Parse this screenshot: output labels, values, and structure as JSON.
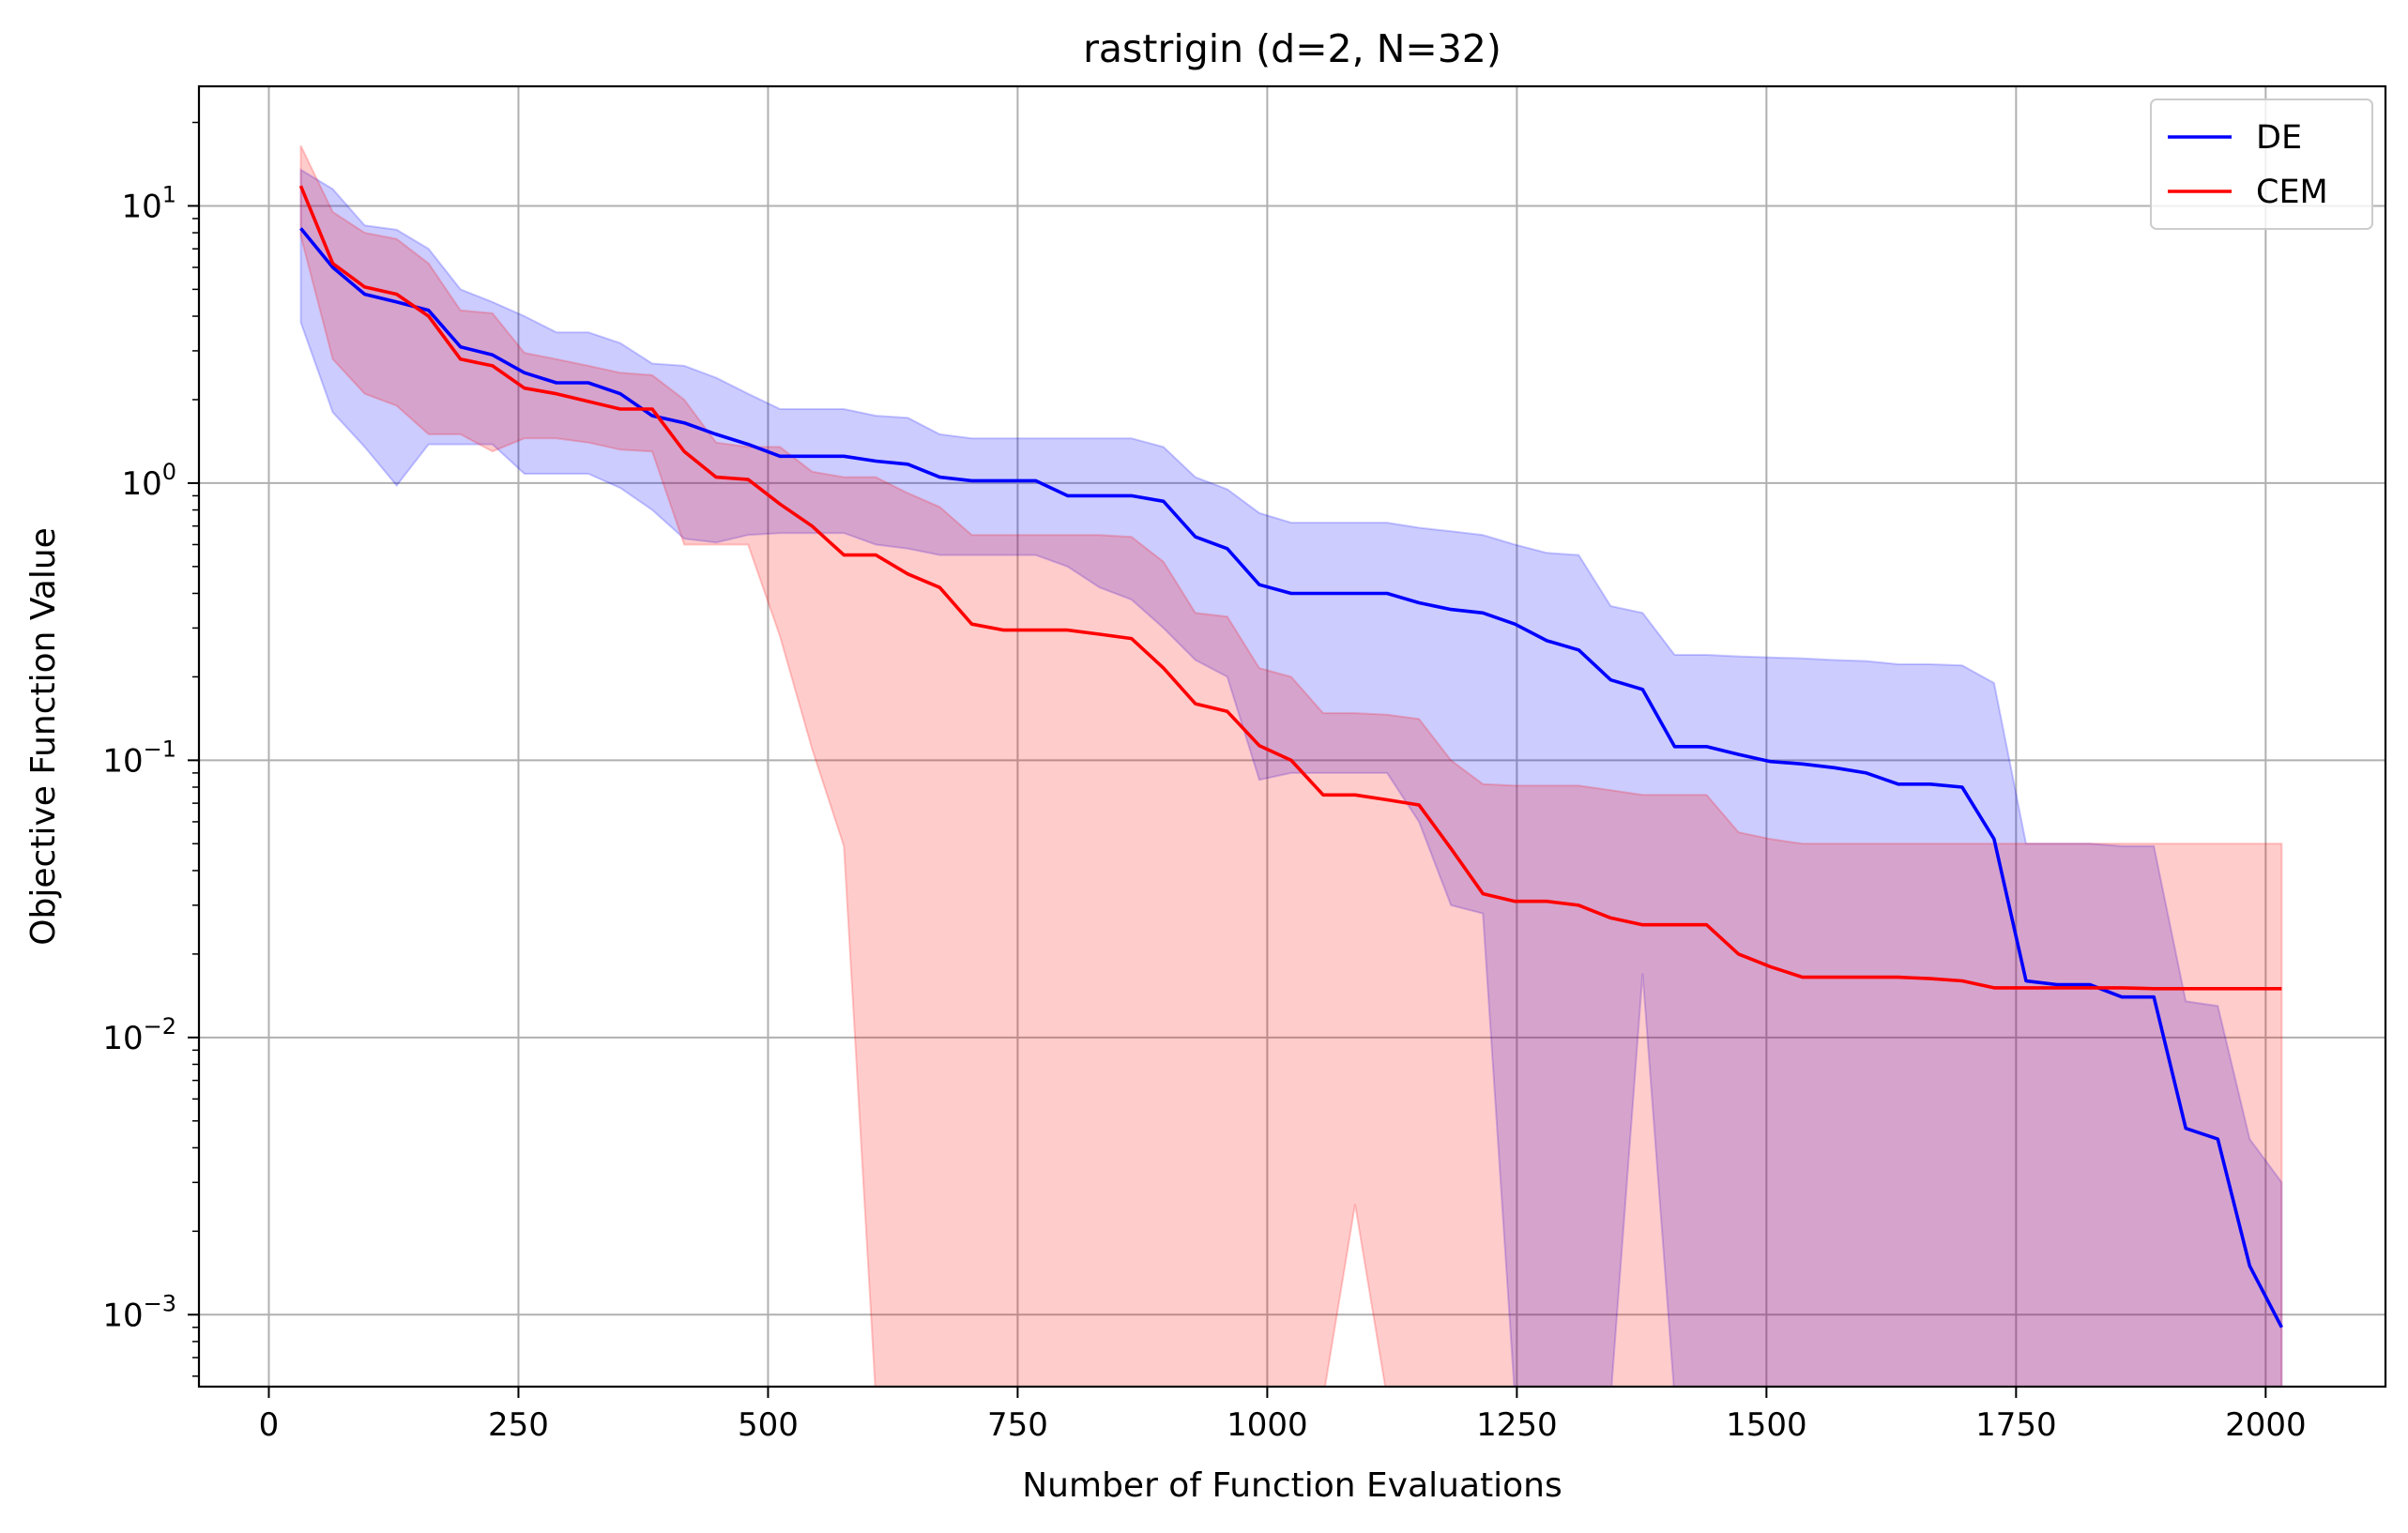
{
  "chart_data": {
    "type": "line",
    "title": "rastrigin (d=2, N=32)",
    "xlabel": "Number of Function Evaluations",
    "ylabel": "Objective Function Value",
    "xlim": [
      -70,
      2120
    ],
    "ylim": [
      0.00055,
      27
    ],
    "yscale": "log",
    "grid": true,
    "legend_position": "top-right",
    "x_ticks": [
      {
        "value": 0,
        "label": "0"
      },
      {
        "value": 250,
        "label": "250"
      },
      {
        "value": 500,
        "label": "500"
      },
      {
        "value": 750,
        "label": "750"
      },
      {
        "value": 1000,
        "label": "1000"
      },
      {
        "value": 1250,
        "label": "1250"
      },
      {
        "value": 1500,
        "label": "1500"
      },
      {
        "value": 1750,
        "label": "1750"
      },
      {
        "value": 2000,
        "label": "2000"
      }
    ],
    "y_ticks": [
      {
        "value": 0.001,
        "base": "10",
        "exp": "−3"
      },
      {
        "value": 0.01,
        "base": "10",
        "exp": "−2"
      },
      {
        "value": 0.1,
        "base": "10",
        "exp": "−1"
      },
      {
        "value": 1,
        "base": "10",
        "exp": "0"
      },
      {
        "value": 10,
        "base": "10",
        "exp": "1"
      }
    ],
    "series": [
      {
        "name": "DE",
        "color": "#0000ff",
        "x": [
          32,
          64,
          96,
          128,
          160,
          192,
          224,
          256,
          288,
          320,
          352,
          384,
          416,
          448,
          480,
          512,
          544,
          576,
          608,
          640,
          672,
          704,
          736,
          768,
          800,
          832,
          864,
          896,
          928,
          960,
          992,
          1024,
          1056,
          1088,
          1120,
          1152,
          1184,
          1216,
          1248,
          1280,
          1312,
          1344,
          1376,
          1408,
          1440,
          1472,
          1504,
          1536,
          1568,
          1600,
          1632,
          1664,
          1696,
          1728,
          1760,
          1792,
          1824,
          1856,
          1888,
          1920,
          1952,
          1984,
          2016
        ],
        "y": [
          8.3,
          6.0,
          4.8,
          4.5,
          4.2,
          3.1,
          2.9,
          2.5,
          2.3,
          2.3,
          2.1,
          1.75,
          1.65,
          1.5,
          1.38,
          1.25,
          1.25,
          1.25,
          1.2,
          1.17,
          1.05,
          1.02,
          1.02,
          1.02,
          0.9,
          0.9,
          0.9,
          0.86,
          0.64,
          0.58,
          0.43,
          0.4,
          0.4,
          0.4,
          0.4,
          0.37,
          0.35,
          0.34,
          0.31,
          0.27,
          0.25,
          0.195,
          0.18,
          0.112,
          0.112,
          0.105,
          0.099,
          0.097,
          0.094,
          0.09,
          0.082,
          0.082,
          0.08,
          0.052,
          0.016,
          0.0155,
          0.0155,
          0.014,
          0.014,
          0.0047,
          0.0043,
          0.0015,
          0.0009
        ],
        "band_upper": [
          13.5,
          11.5,
          8.5,
          8.2,
          7.0,
          5.0,
          4.5,
          4.0,
          3.5,
          3.5,
          3.2,
          2.7,
          2.65,
          2.4,
          2.1,
          1.85,
          1.85,
          1.85,
          1.75,
          1.72,
          1.5,
          1.45,
          1.45,
          1.45,
          1.45,
          1.45,
          1.45,
          1.35,
          1.05,
          0.95,
          0.78,
          0.72,
          0.72,
          0.72,
          0.72,
          0.69,
          0.67,
          0.65,
          0.6,
          0.56,
          0.55,
          0.36,
          0.34,
          0.24,
          0.24,
          0.237,
          0.235,
          0.233,
          0.23,
          0.228,
          0.222,
          0.222,
          0.22,
          0.19,
          0.05,
          0.05,
          0.05,
          0.049,
          0.049,
          0.0135,
          0.013,
          0.0043,
          0.003
        ],
        "band_lower": [
          3.8,
          1.8,
          1.35,
          0.98,
          1.38,
          1.38,
          1.38,
          1.08,
          1.08,
          1.08,
          0.96,
          0.8,
          0.63,
          0.61,
          0.65,
          0.66,
          0.66,
          0.66,
          0.6,
          0.58,
          0.55,
          0.55,
          0.55,
          0.55,
          0.5,
          0.42,
          0.38,
          0.3,
          0.23,
          0.2,
          0.085,
          0.09,
          0.09,
          0.09,
          0.09,
          0.06,
          0.03,
          0.028,
          0.0005,
          0.0005,
          0.0005,
          0.0005,
          0.017,
          0.0005,
          0.0005,
          0.0005,
          0.0005,
          0.0005,
          0.0005,
          0.0005,
          0.0005,
          0.0005,
          0.0005,
          0.0005,
          0.0005,
          0.0005,
          0.0005,
          0.0005,
          0.0005,
          0.0005,
          0.0005,
          0.0005,
          0.0005
        ]
      },
      {
        "name": "CEM",
        "color": "#ff0000",
        "x": [
          32,
          64,
          96,
          128,
          160,
          192,
          224,
          256,
          288,
          320,
          352,
          384,
          416,
          448,
          480,
          512,
          544,
          576,
          608,
          640,
          672,
          704,
          736,
          768,
          800,
          832,
          864,
          896,
          928,
          960,
          992,
          1024,
          1056,
          1088,
          1120,
          1152,
          1184,
          1216,
          1248,
          1280,
          1312,
          1344,
          1376,
          1408,
          1440,
          1472,
          1504,
          1536,
          1568,
          1600,
          1632,
          1664,
          1696,
          1728,
          1760,
          1792,
          1824,
          1856,
          1888,
          1920,
          1952,
          1984,
          2016
        ],
        "y": [
          11.8,
          6.2,
          5.1,
          4.8,
          4.0,
          2.8,
          2.65,
          2.2,
          2.1,
          1.97,
          1.85,
          1.85,
          1.3,
          1.05,
          1.03,
          0.84,
          0.7,
          0.55,
          0.55,
          0.47,
          0.42,
          0.31,
          0.295,
          0.295,
          0.295,
          0.285,
          0.275,
          0.215,
          0.16,
          0.15,
          0.113,
          0.1,
          0.075,
          0.075,
          0.072,
          0.069,
          0.048,
          0.033,
          0.031,
          0.031,
          0.03,
          0.027,
          0.0255,
          0.0255,
          0.0255,
          0.02,
          0.018,
          0.0165,
          0.0165,
          0.0165,
          0.0165,
          0.0163,
          0.016,
          0.0151,
          0.0151,
          0.0151,
          0.0151,
          0.0151,
          0.015,
          0.015,
          0.015,
          0.015,
          0.015
        ],
        "band_upper": [
          16.5,
          9.5,
          8.0,
          7.6,
          6.2,
          4.2,
          4.1,
          2.95,
          2.8,
          2.65,
          2.5,
          2.45,
          2.0,
          1.4,
          1.35,
          1.35,
          1.1,
          1.05,
          1.05,
          0.92,
          0.82,
          0.65,
          0.65,
          0.65,
          0.65,
          0.65,
          0.64,
          0.52,
          0.34,
          0.33,
          0.215,
          0.2,
          0.148,
          0.148,
          0.146,
          0.141,
          0.1,
          0.082,
          0.081,
          0.081,
          0.081,
          0.078,
          0.075,
          0.075,
          0.075,
          0.055,
          0.052,
          0.05,
          0.05,
          0.05,
          0.05,
          0.05,
          0.05,
          0.05,
          0.05,
          0.05,
          0.05,
          0.05,
          0.05,
          0.05,
          0.05,
          0.05,
          0.05
        ],
        "band_lower": [
          7.8,
          2.8,
          2.1,
          1.9,
          1.5,
          1.5,
          1.3,
          1.45,
          1.45,
          1.4,
          1.32,
          1.3,
          0.6,
          0.6,
          0.6,
          0.28,
          0.11,
          0.049,
          0.0005,
          0.0005,
          0.0005,
          0.0005,
          0.0005,
          0.0005,
          0.0005,
          0.0005,
          0.0005,
          0.0005,
          0.0005,
          0.0005,
          0.0005,
          0.0005,
          0.0005,
          0.0025,
          0.0005,
          0.0005,
          0.0005,
          0.0005,
          0.0005,
          0.0005,
          0.0005,
          0.0005,
          0.0005,
          0.0005,
          0.0005,
          0.0005,
          0.0005,
          0.0005,
          0.0005,
          0.0005,
          0.0005,
          0.0005,
          0.0005,
          0.0005,
          0.0005,
          0.0005,
          0.0005,
          0.0005,
          0.0005,
          0.0005,
          0.0005,
          0.0005,
          0.0005
        ]
      }
    ]
  }
}
